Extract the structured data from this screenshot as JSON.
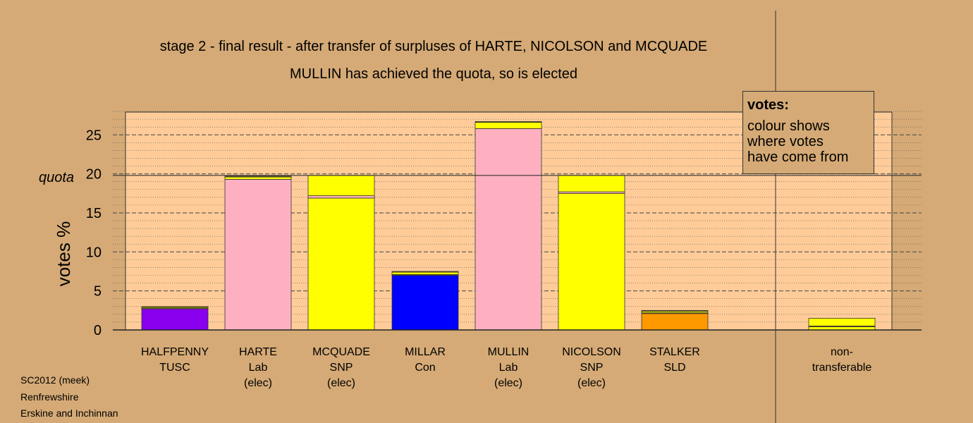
{
  "titles": {
    "line1": "stage 2 - final result - after transfer of surpluses of HARTE, NICOLSON and MCQUADE",
    "line2": "MULLIN has achieved the quota, so is elected"
  },
  "legend": {
    "heading": "votes:",
    "lines": [
      "colour shows",
      "where votes",
      "have come from"
    ]
  },
  "source": [
    "SC2012 (meek)",
    "Renfrewshire",
    "Erskine and Inchinnan"
  ],
  "colors": {
    "background": "#d5aa76",
    "plot_area": "#ffcc99",
    "purple": "#8800ee",
    "pink": "#ffb0c0",
    "yellow": "#ffff00",
    "blue": "#0000ff",
    "orange": "#ff9900",
    "olive": "#808000"
  },
  "chart_data": {
    "type": "bar",
    "stacked": true,
    "ylabel": "votes %",
    "ylim": [
      0,
      28
    ],
    "yticks": [
      0,
      5,
      10,
      15,
      20,
      25
    ],
    "quota": {
      "label": "quota",
      "value": 19.8
    },
    "grid": true,
    "categories": [
      {
        "lines": [
          "HALFPENNY",
          "TUSC"
        ]
      },
      {
        "lines": [
          "HARTE",
          "Lab",
          "(elec)"
        ]
      },
      {
        "lines": [
          "MCQUADE",
          "SNP",
          "(elec)"
        ]
      },
      {
        "lines": [
          "MILLAR",
          "Con"
        ]
      },
      {
        "lines": [
          "MULLIN",
          "Lab",
          "(elec)"
        ]
      },
      {
        "lines": [
          "NICOLSON",
          "SNP",
          "(elec)"
        ]
      },
      {
        "lines": [
          "STALKER",
          "SLD"
        ]
      },
      {
        "lines": []
      },
      {
        "lines": [
          "non-",
          "transferable"
        ]
      }
    ],
    "bars": [
      {
        "segments": [
          {
            "color": "purple",
            "value": 2.7
          },
          {
            "color": "yellow",
            "value": 0.1
          },
          {
            "color": "olive",
            "value": 0.2
          }
        ]
      },
      {
        "segments": [
          {
            "color": "pink",
            "value": 19.3
          },
          {
            "color": "yellow",
            "value": 0.3
          },
          {
            "color": "olive",
            "value": 0.1
          }
        ]
      },
      {
        "segments": [
          {
            "color": "yellow",
            "value": 16.9
          },
          {
            "color": "pink",
            "value": 0.3
          },
          {
            "color": "yellow",
            "value": 2.6
          }
        ]
      },
      {
        "segments": [
          {
            "color": "blue",
            "value": 7.0
          },
          {
            "color": "olive",
            "value": 0.1
          },
          {
            "color": "yellow",
            "value": 0.3
          },
          {
            "color": "olive",
            "value": 0.1
          }
        ]
      },
      {
        "segments": [
          {
            "color": "pink",
            "value": 25.8
          },
          {
            "color": "yellow",
            "value": 0.8
          },
          {
            "color": "olive",
            "value": 0.1
          }
        ]
      },
      {
        "segments": [
          {
            "color": "yellow",
            "value": 17.5
          },
          {
            "color": "pink",
            "value": 0.2
          },
          {
            "color": "yellow",
            "value": 2.1
          }
        ]
      },
      {
        "segments": [
          {
            "color": "orange",
            "value": 2.1
          },
          {
            "color": "olive",
            "value": 0.1
          },
          {
            "color": "yellow",
            "value": 0.2
          },
          {
            "color": "olive",
            "value": 0.1
          }
        ]
      },
      {
        "segments": []
      },
      {
        "segments": [
          {
            "color": "yellow",
            "value": 0.4
          },
          {
            "color": "olive",
            "value": 0.1
          },
          {
            "color": "yellow",
            "value": 1.0
          }
        ]
      }
    ]
  }
}
